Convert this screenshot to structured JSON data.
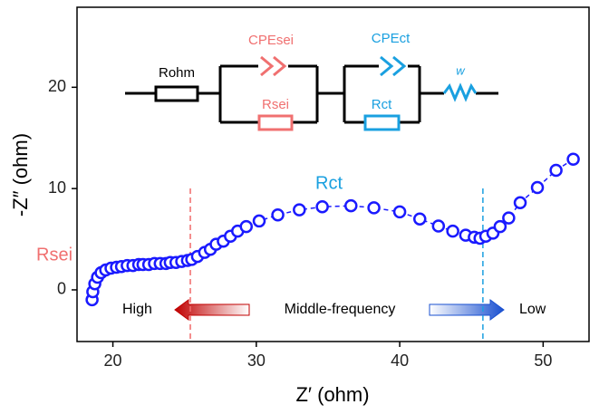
{
  "chart_data": {
    "type": "scatter",
    "x_label": "Z′ (ohm)",
    "y_label": "-Z″ (ohm)",
    "x": [
      18.55,
      18.6,
      18.74,
      18.93,
      19.18,
      19.5,
      19.87,
      20.25,
      20.6,
      21.0,
      21.4,
      21.8,
      22.1,
      22.5,
      22.9,
      23.3,
      23.7,
      24.0,
      24.4,
      24.8,
      25.2,
      25.5,
      25.9,
      26.4,
      26.8,
      27.2,
      27.7,
      28.2,
      28.7,
      29.3,
      30.2,
      31.5,
      33.0,
      34.6,
      36.6,
      38.2,
      40.0,
      41.4,
      42.7,
      43.7,
      44.6,
      45.2,
      45.6,
      46.0,
      46.5,
      47.0,
      47.6,
      48.4,
      49.6,
      50.9,
      52.1
    ],
    "values": [
      -0.98,
      -0.18,
      0.6,
      1.25,
      1.7,
      1.96,
      2.14,
      2.23,
      2.3,
      2.4,
      2.4,
      2.5,
      2.5,
      2.5,
      2.6,
      2.6,
      2.6,
      2.7,
      2.7,
      2.8,
      2.9,
      3.0,
      3.3,
      3.7,
      4.0,
      4.5,
      4.8,
      5.3,
      5.8,
      6.25,
      6.8,
      7.4,
      7.9,
      8.2,
      8.3,
      8.1,
      7.7,
      7.0,
      6.3,
      5.8,
      5.4,
      5.2,
      5.1,
      5.3,
      5.6,
      6.25,
      7.1,
      8.6,
      10.1,
      11.8,
      12.9
    ],
    "color": "#1a1aff",
    "xlim": [
      17.5,
      53.2
    ],
    "ylim": [
      -5.1,
      27.9
    ],
    "xticks": [
      20,
      30,
      40,
      50
    ],
    "yticks": [
      0,
      10,
      20
    ],
    "vlines": [
      {
        "x": 25.4,
        "color": "#f06a6a"
      },
      {
        "x": 45.8,
        "color": "#1aa0e0"
      }
    ],
    "annotations": {
      "rsei": "Rsei",
      "rct": "Rct",
      "high": "High",
      "middle": "Middle-frequency",
      "low": "Low"
    }
  },
  "circuit": {
    "rohm": "Rohm",
    "cpesei": "CPEsei",
    "rsei": "Rsei",
    "cpect": "CPEct",
    "rct": "Rct",
    "w": "w"
  }
}
